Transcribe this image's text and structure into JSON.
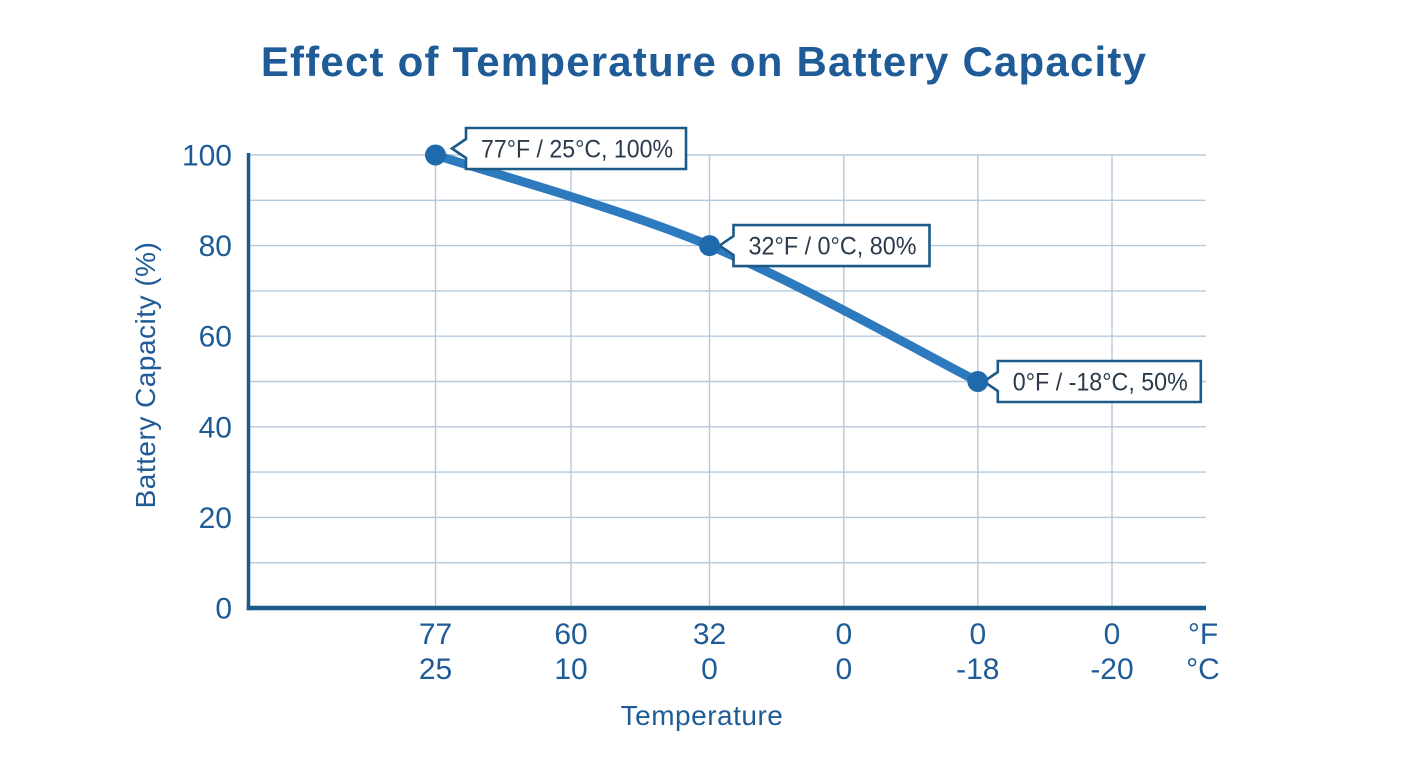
{
  "chart_data": {
    "type": "line",
    "title": "Effect of Temperature on Battery Capacity",
    "xlabel": "Temperature",
    "ylabel": "Battery Capacity (%)",
    "ylim": [
      0,
      100
    ],
    "y_ticks": [
      100,
      80,
      60,
      40,
      20,
      0
    ],
    "y_gridline_step": 10,
    "grid": true,
    "x_axis": {
      "rows": [
        {
          "unit": "°F",
          "labels": [
            "77",
            "60",
            "32",
            "0",
            "0",
            "0"
          ]
        },
        {
          "unit": "°C",
          "labels": [
            "25",
            "10",
            "0",
            "0",
            "-18",
            "-20"
          ]
        }
      ]
    },
    "series": [
      {
        "name": "battery-capacity",
        "points": [
          {
            "category_index": 0,
            "temp_f": "77",
            "temp_c": "25",
            "value": 100,
            "callout": "77°F / 25°C, 100%"
          },
          {
            "category_index": 2,
            "temp_f": "32",
            "temp_c": "0",
            "value": 80,
            "callout": "32°F / 0°C, 80%"
          },
          {
            "category_index": 4,
            "temp_f": "0",
            "temp_c": "-18",
            "value": 50,
            "callout": "0°F / -18°C, 50%"
          }
        ]
      }
    ],
    "colors": {
      "background": "#ffffff",
      "title_text": "#1f5c97",
      "axis_text": "#1f5c97",
      "axis_line": "#1c5a88",
      "gridline": "#b4cade",
      "series_line": "#2e7abf",
      "marker": "#1e6aac",
      "callout_border": "#1c5a88",
      "callout_fill": "#ffffff",
      "callout_text": "#2b3a4a"
    }
  }
}
